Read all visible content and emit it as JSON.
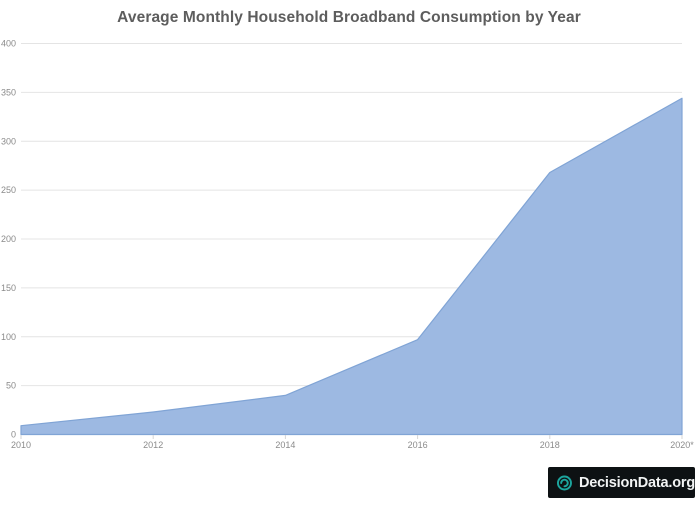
{
  "chart_data": {
    "type": "area",
    "title": "Average Monthly Household Broadband Consumption by Year",
    "categories": [
      "2010",
      "2012",
      "2014",
      "2016",
      "2018",
      "2020*"
    ],
    "values": [
      9,
      23,
      40,
      97,
      268,
      344
    ],
    "xlabel": "",
    "ylabel": "",
    "ylim": [
      0,
      400
    ],
    "y_ticks": [
      0,
      50,
      100,
      150,
      200,
      250,
      300,
      350,
      400
    ],
    "grid": "horizontal",
    "legend": "none",
    "colors": {
      "area_fill": "#9db9e2",
      "area_stroke": "#80a4d5",
      "grid_line": "#e4e4e4",
      "axis_tick": "#d6d6d6",
      "axis_label": "#8b8b8b",
      "title": "#5d5d5d"
    }
  },
  "branding": {
    "logo_text": "DecisionData.org",
    "logo_icon": "swirl-d-icon",
    "colors": {
      "background": "#0d1113",
      "accent": "#1ca59e",
      "text": "#f2f4f4"
    }
  }
}
